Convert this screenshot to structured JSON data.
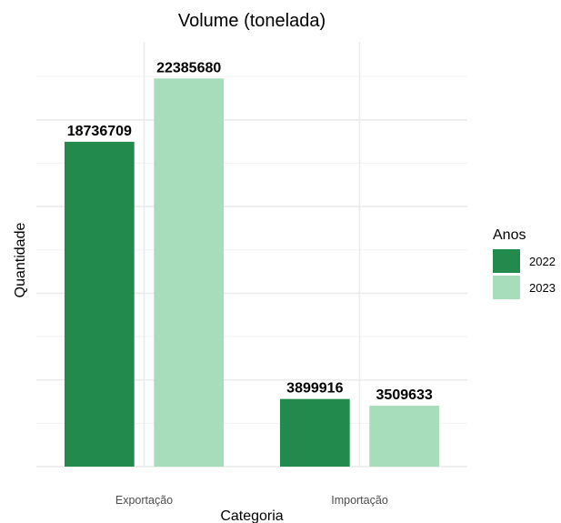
{
  "chart_data": {
    "type": "bar",
    "title": "Volume (tonelada)",
    "xlabel": "Categoria",
    "ylabel": "Quantidade",
    "categories": [
      "Exportação",
      "Importação"
    ],
    "series": [
      {
        "name": "2022",
        "color": "#218a4c",
        "values": [
          18736709,
          3899916
        ]
      },
      {
        "name": "2023",
        "color": "#a8ddbb",
        "values": [
          22385680,
          3509633
        ]
      }
    ],
    "ylim": [
      0,
      24500000
    ],
    "grid": true,
    "legend": {
      "title": "Anos",
      "position": "right"
    }
  }
}
